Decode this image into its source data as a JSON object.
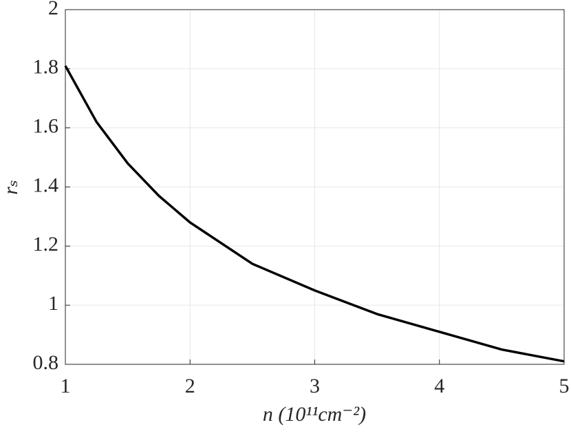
{
  "chart_data": {
    "type": "line",
    "x_label": "n (10¹¹cm⁻²)",
    "y_label": "rₛ",
    "x": [
      1,
      1.25,
      1.5,
      1.75,
      2,
      2.5,
      3,
      3.5,
      4,
      4.5,
      5
    ],
    "series": [
      {
        "name": "rₛ",
        "color": "#000000",
        "values": [
          1.81,
          1.62,
          1.48,
          1.37,
          1.28,
          1.14,
          1.05,
          0.97,
          0.91,
          0.85,
          0.81
        ]
      }
    ],
    "xlim": [
      1,
      5
    ],
    "xticks": [
      1,
      2,
      3,
      4,
      5
    ],
    "ylim": [
      0.8,
      2
    ],
    "yticks": [
      0.8,
      1,
      1.2,
      1.4,
      1.6,
      1.8,
      2
    ],
    "grid": true
  }
}
